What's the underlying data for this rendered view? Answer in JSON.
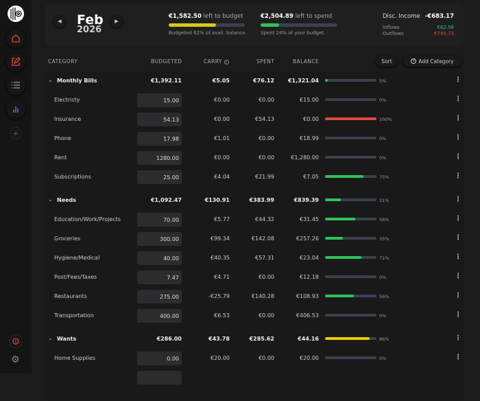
{
  "sidebar": {
    "items": [
      {
        "name": "home",
        "color": "#e04a3c"
      },
      {
        "name": "edit",
        "color": "#e04a3c"
      },
      {
        "name": "list",
        "color": "#9aa"
      },
      {
        "name": "chart",
        "color": "#8a5cd6"
      },
      {
        "name": "add",
        "color": "#666"
      }
    ],
    "alert_color": "#e04a3c"
  },
  "header": {
    "month": "Feb",
    "year": "2026",
    "left_to_budget": {
      "amount": "€1,582.50",
      "label": "left to budget",
      "sub": "Budgeted 62% of avail. balance.",
      "percent": 62,
      "color": "#d4cc1e"
    },
    "left_to_spend": {
      "amount": "€2,504.89",
      "label": "left to spend",
      "sub": "Spent 24% of your budget.",
      "percent": 24,
      "color": "#2ec35a"
    },
    "disc_income": {
      "label": "Disc. Income",
      "value": "-€683.17",
      "inflows_label": "Inflows",
      "inflows": "€62.56",
      "outflows_label": "Outflows",
      "outflows": "€745.73"
    }
  },
  "table": {
    "headers": {
      "category": "CATEGORY",
      "budgeted": "BUDGETED",
      "carry": "CARRY",
      "spent": "SPENT",
      "balance": "BALANCE"
    },
    "sort_label": "Sort",
    "add_label": "Add Category",
    "groups": [
      {
        "name": "Monthly Bills",
        "budgeted": "€1,392.11",
        "carry": "€5.05",
        "spent": "€76.12",
        "balance": "€1,321.04",
        "pct": "5%",
        "percent": 5,
        "color": "#2ec35a",
        "items": [
          {
            "name": "Electricty",
            "budgeted": "15.00",
            "carry": "€0.00",
            "spent": "€0.00",
            "balance": "€15.00",
            "pct": "0%",
            "percent": 0,
            "color": "#2ec35a"
          },
          {
            "name": "Insurance",
            "budgeted": "54.13",
            "carry": "€0.00",
            "spent": "€54.13",
            "balance": "€0.00",
            "pct": "100%",
            "percent": 100,
            "color": "#e04a3c"
          },
          {
            "name": "Phone",
            "budgeted": "17.98",
            "carry": "€1.01",
            "spent": "€0.00",
            "balance": "€18.99",
            "pct": "0%",
            "percent": 0,
            "color": "#2ec35a"
          },
          {
            "name": "Rent",
            "budgeted": "1280.00",
            "carry": "€0.00",
            "spent": "€0.00",
            "balance": "€1,280.00",
            "pct": "0%",
            "percent": 0,
            "color": "#2ec35a"
          },
          {
            "name": "Subscriptions",
            "budgeted": "25.00",
            "carry": "€4.04",
            "spent": "€21.99",
            "balance": "€7.05",
            "pct": "75%",
            "percent": 75,
            "color": "#2ec35a"
          }
        ]
      },
      {
        "name": "Needs",
        "budgeted": "€1,092.47",
        "carry": "€130.91",
        "spent": "€383.99",
        "balance": "€839.39",
        "pct": "31%",
        "percent": 31,
        "color": "#2ec35a",
        "items": [
          {
            "name": "Education/Work/Projects",
            "budgeted": "70.00",
            "carry": "€5.77",
            "spent": "€44.32",
            "balance": "€31.45",
            "pct": "58%",
            "percent": 58,
            "color": "#2ec35a"
          },
          {
            "name": "Groceries",
            "budgeted": "300.00",
            "carry": "€99.34",
            "spent": "€142.08",
            "balance": "€257.26",
            "pct": "35%",
            "percent": 35,
            "color": "#2ec35a"
          },
          {
            "name": "Hygiene/Medical",
            "budgeted": "40.00",
            "carry": "€40.35",
            "spent": "€57.31",
            "balance": "€23.04",
            "pct": "71%",
            "percent": 71,
            "color": "#2ec35a"
          },
          {
            "name": "Post/Fees/Taxes",
            "budgeted": "7.47",
            "carry": "€4.71",
            "spent": "€0.00",
            "balance": "€12.18",
            "pct": "0%",
            "percent": 0,
            "color": "#2ec35a"
          },
          {
            "name": "Restaurants",
            "budgeted": "275.00",
            "carry": "-€25.79",
            "spent": "€140.28",
            "balance": "€108.93",
            "pct": "56%",
            "percent": 56,
            "color": "#2ec35a"
          },
          {
            "name": "Transportation",
            "budgeted": "400.00",
            "carry": "€6.53",
            "spent": "€0.00",
            "balance": "€406.53",
            "pct": "0%",
            "percent": 0,
            "color": "#2ec35a"
          }
        ]
      },
      {
        "name": "Wants",
        "budgeted": "€286.00",
        "carry": "€43.78",
        "spent": "€285.62",
        "balance": "€44.16",
        "pct": "86%",
        "percent": 86,
        "color": "#f2c80f",
        "items": [
          {
            "name": "Home Supplies",
            "budgeted": "0.00",
            "carry": "€20.00",
            "spent": "€0.00",
            "balance": "€20.00",
            "pct": "0%",
            "percent": 0,
            "color": "#2ec35a"
          },
          {
            "name": "",
            "budgeted": "",
            "carry": "",
            "spent": "",
            "balance": "",
            "pct": "",
            "percent": 0,
            "color": "#2ec35a"
          }
        ]
      }
    ]
  }
}
